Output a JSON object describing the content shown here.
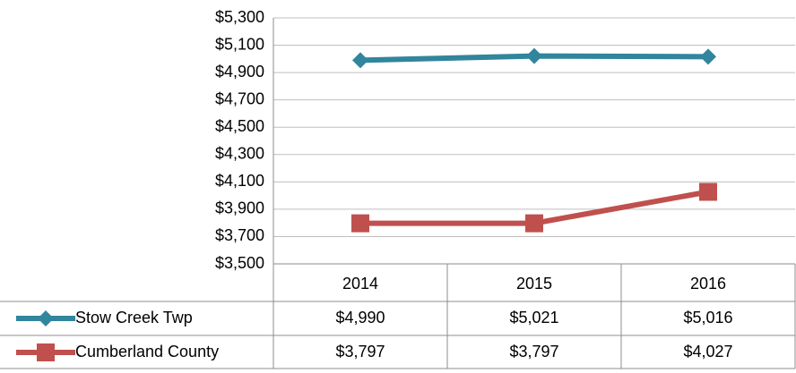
{
  "chart_data": {
    "type": "line",
    "categories": [
      "2014",
      "2015",
      "2016"
    ],
    "series": [
      {
        "name": "Stow Creek Twp",
        "color": "#31859c",
        "marker": "diamond",
        "values": [
          4990,
          5021,
          5016
        ],
        "value_labels": [
          "$4,990",
          "$5,021",
          "$5,016"
        ]
      },
      {
        "name": "Cumberland County",
        "color": "#c0504d",
        "marker": "square",
        "values": [
          3797,
          3797,
          4027
        ],
        "value_labels": [
          "$3,797",
          "$3,797",
          "$4,027"
        ]
      }
    ],
    "ylim": [
      3500,
      5300
    ],
    "yticks": [
      {
        "value": 3500,
        "label": "$3,500"
      },
      {
        "value": 3700,
        "label": "$3,700"
      },
      {
        "value": 3900,
        "label": "$3,900"
      },
      {
        "value": 4100,
        "label": "$4,100"
      },
      {
        "value": 4300,
        "label": "$4,300"
      },
      {
        "value": 4500,
        "label": "$4,500"
      },
      {
        "value": 4700,
        "label": "$4,700"
      },
      {
        "value": 4900,
        "label": "$4,900"
      },
      {
        "value": 5100,
        "label": "$5,100"
      },
      {
        "value": 5300,
        "label": "$5,300"
      }
    ],
    "grid": true,
    "data_table": true
  }
}
